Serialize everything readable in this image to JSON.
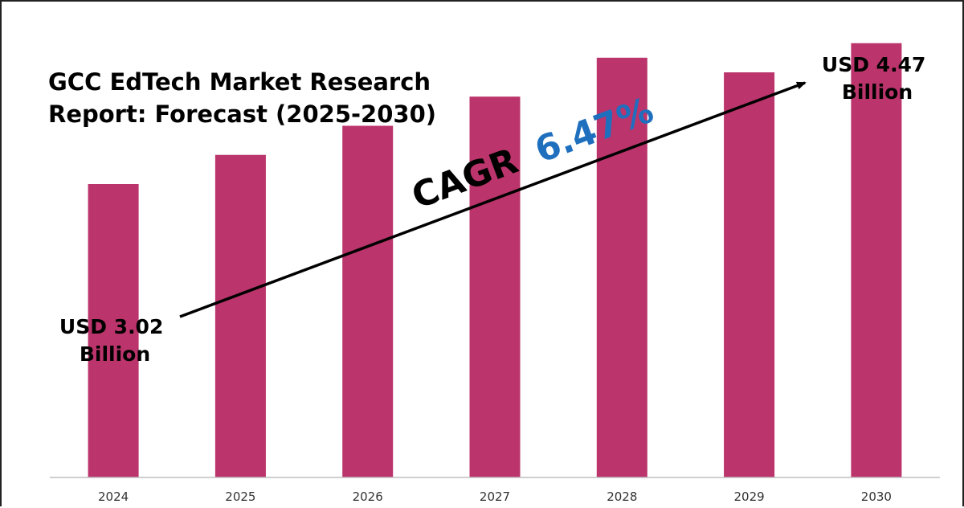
{
  "chart_data": {
    "type": "bar",
    "title_lines": [
      "GCC EdTech Market Research",
      "Report: Forecast (2025-2030)"
    ],
    "categories": [
      "2024",
      "2025",
      "2026",
      "2027",
      "2028",
      "2029",
      "2030"
    ],
    "values": [
      3.02,
      3.32,
      3.62,
      3.92,
      4.32,
      4.17,
      4.47
    ],
    "ylim": [
      0,
      4.6
    ],
    "grid": false,
    "colors": {
      "bar": "#bb346b",
      "cagr_value": "#1f6fbf",
      "text": "#000000",
      "axis": "#bfbfbf"
    },
    "annotations": {
      "start_lines": [
        "USD 3.02",
        "Billion"
      ],
      "end_lines": [
        "USD 4.47",
        "Billion"
      ],
      "cagr_label": "CAGR",
      "cagr_value": "6.47%"
    }
  }
}
